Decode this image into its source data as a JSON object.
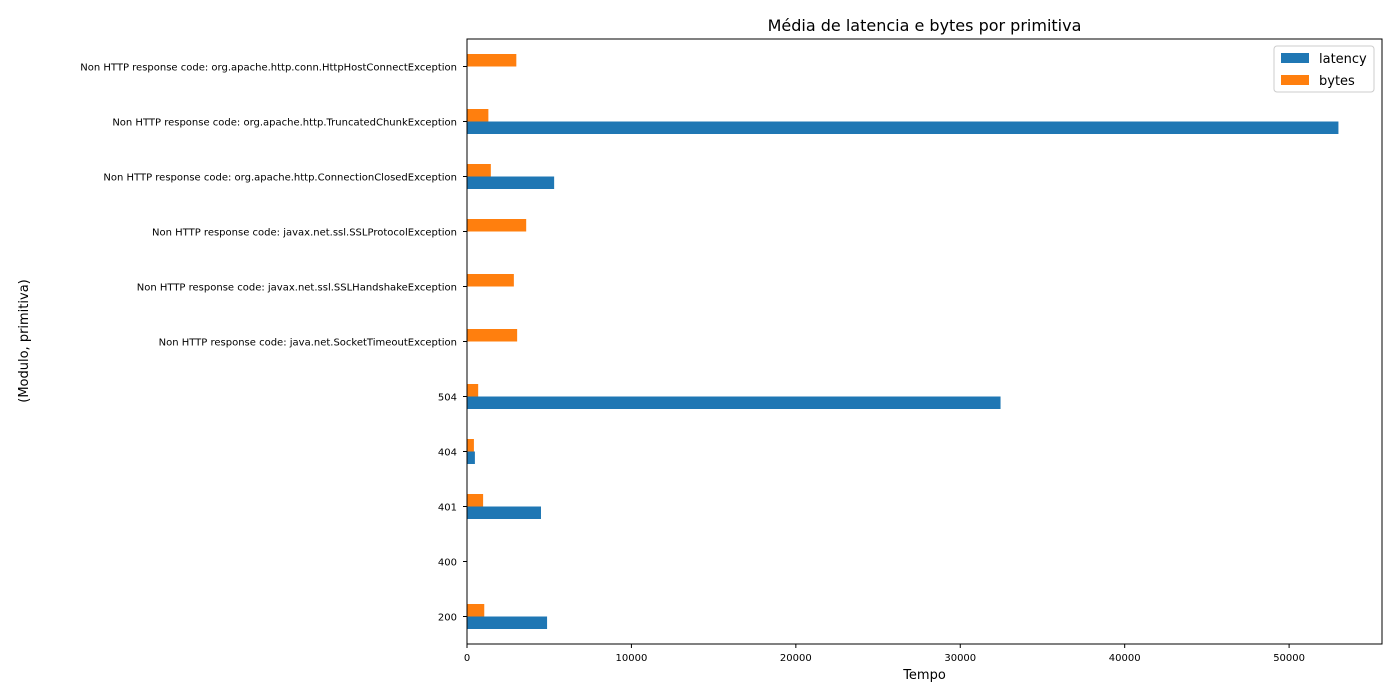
{
  "chart_data": {
    "type": "bar",
    "orientation": "horizontal",
    "title": "Média de latencia e bytes por primitiva",
    "xlabel": "Tempo",
    "ylabel": "(Modulo, primitiva)",
    "xlim": [
      0,
      55650
    ],
    "xticks": [
      0,
      10000,
      20000,
      30000,
      40000,
      50000
    ],
    "grid": false,
    "legend_position": "top-right",
    "categories": [
      "200",
      "400",
      "401",
      "404",
      "504",
      "Non HTTP response code: java.net.SocketTimeoutException",
      "Non HTTP response code: javax.net.ssl.SSLHandshakeException",
      "Non HTTP response code: javax.net.ssl.SSLProtocolException",
      "Non HTTP response code: org.apache.http.ConnectionClosedException",
      "Non HTTP response code: org.apache.http.TruncatedChunkException",
      "Non HTTP response code: org.apache.http.conn.HttpHostConnectException"
    ],
    "series": [
      {
        "name": "latency",
        "color": "#1f77b4",
        "values": [
          4870,
          0,
          4500,
          480,
          32450,
          0,
          0,
          0,
          5300,
          53000,
          0
        ]
      },
      {
        "name": "bytes",
        "color": "#ff7f0e",
        "values": [
          1050,
          0,
          980,
          420,
          680,
          3050,
          2850,
          3600,
          1450,
          1300,
          3000
        ]
      }
    ]
  }
}
